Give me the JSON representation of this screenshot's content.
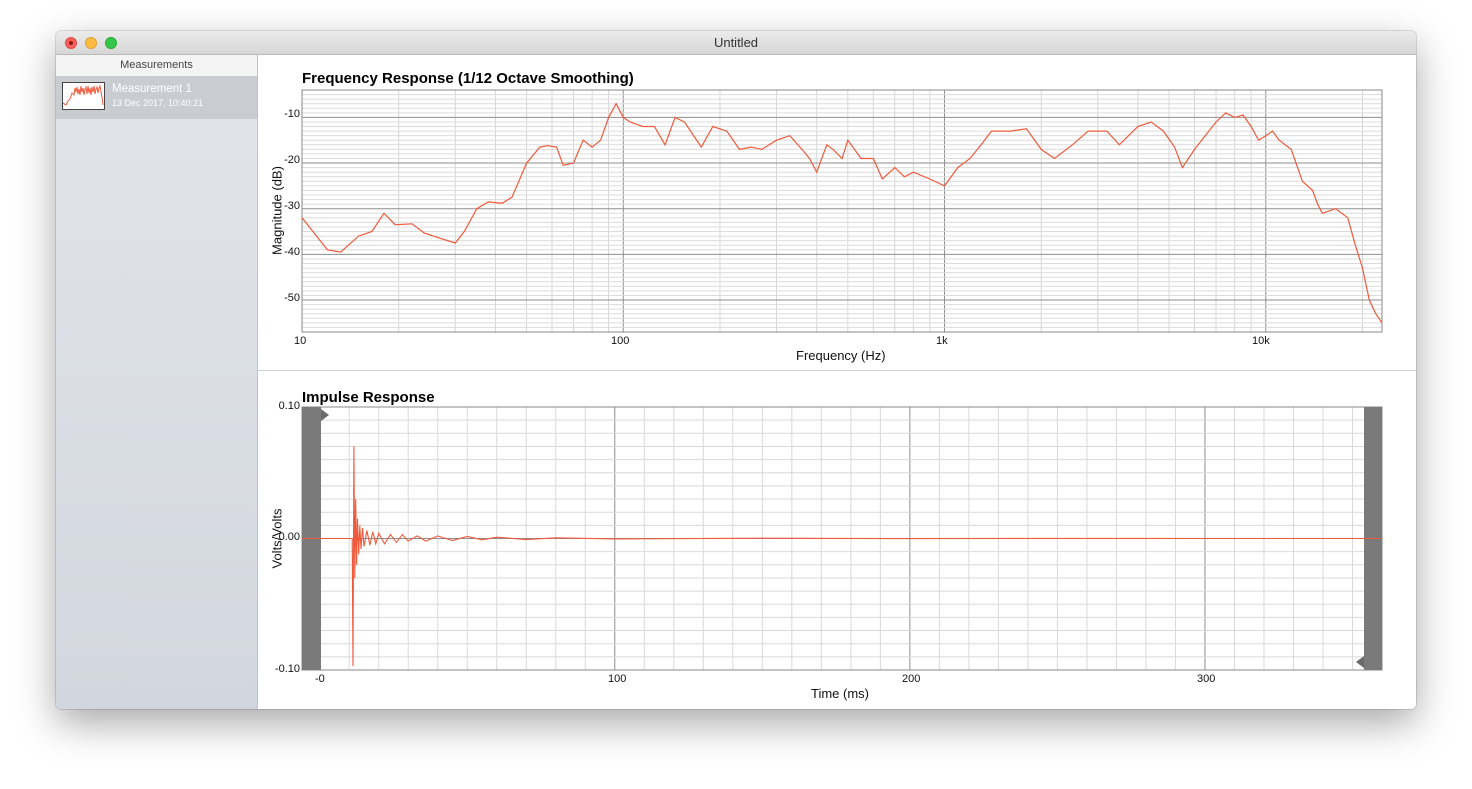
{
  "window": {
    "title": "Untitled"
  },
  "sidebar": {
    "header": "Measurements",
    "items": [
      {
        "name": "Measurement 1",
        "date": "13 Dec 2017, 10:40:21"
      }
    ]
  },
  "colors": {
    "trace": "#f05a3c",
    "sidebar_selected": "#c9ccd1",
    "handle": "#7a7a7a"
  },
  "frequency_chart": {
    "title": "Frequency Response (1/12 Octave Smoothing)",
    "xlabel": "Frequency (Hz)",
    "ylabel": "Magnitude (dB)",
    "x_ticks": [
      "10",
      "100",
      "1k",
      "10k"
    ],
    "y_ticks": [
      "-10",
      "-20",
      "-30",
      "-40",
      "-50"
    ]
  },
  "impulse_chart": {
    "title": "Impulse Response",
    "xlabel": "Time (ms)",
    "ylabel": "Volts/Volts",
    "x_ticks": [
      "-0",
      "100",
      "200",
      "300"
    ],
    "y_ticks": [
      "0.10",
      "0.00",
      "-0.10"
    ]
  },
  "chart_data": [
    {
      "type": "line",
      "title": "Frequency Response (1/12 Octave Smoothing)",
      "xlabel": "Frequency (Hz)",
      "ylabel": "Magnitude (dB)",
      "x_scale": "log",
      "xlim": [
        10,
        23000
      ],
      "ylim": [
        -57,
        -4
      ],
      "grid": true,
      "series": [
        {
          "x": [
            10,
            12,
            13.2,
            15,
            16.5,
            18,
            19.5,
            22,
            24,
            27,
            30,
            32,
            35,
            38,
            42,
            45,
            50,
            55,
            58,
            62,
            65,
            70,
            75,
            80,
            85,
            90,
            95,
            100,
            105,
            115,
            125,
            135,
            145,
            155,
            175,
            190,
            210,
            230,
            250,
            270,
            300,
            330,
            360,
            380,
            400,
            430,
            450,
            480,
            500,
            550,
            600,
            640,
            700,
            750,
            800,
            900,
            1000,
            1100,
            1200,
            1300,
            1400,
            1600,
            1800,
            2000,
            2200,
            2500,
            2800,
            3200,
            3500,
            4000,
            4400,
            4800,
            5200,
            5500,
            6000,
            7000,
            7500,
            8000,
            8500,
            9000,
            9500,
            10000,
            10500,
            11000,
            12000,
            13000,
            14000,
            14500,
            15000,
            16500,
            18000,
            19000,
            20000,
            21000,
            22000,
            23000
          ],
          "y": [
            -32,
            -39,
            -39.5,
            -36,
            -35,
            -31,
            -33.5,
            -33.3,
            -35.3,
            -36.5,
            -37.5,
            -35,
            -30,
            -28.5,
            -28.8,
            -27.5,
            -20,
            -16.5,
            -16.2,
            -16.5,
            -20.5,
            -20,
            -15,
            -16.5,
            -15,
            -10,
            -7,
            -10,
            -11,
            -12,
            -12,
            -16,
            -10,
            -11,
            -16.5,
            -12,
            -13,
            -17,
            -16.5,
            -17,
            -15,
            -14,
            -17,
            -19,
            -22,
            -16,
            -17,
            -19,
            -15,
            -19,
            -19,
            -23.5,
            -21,
            -23,
            -22,
            -23.5,
            -25,
            -21,
            -19,
            -16,
            -13,
            -13,
            -12.5,
            -17,
            -19,
            -16,
            -13,
            -13,
            -16,
            -12,
            -11,
            -13,
            -16.5,
            -21,
            -17,
            -11,
            -9,
            -10,
            -9.5,
            -12,
            -15,
            -14,
            -13,
            -15,
            -17,
            -24,
            -26,
            -29,
            -31,
            -30,
            -32,
            -38,
            -43,
            -50,
            -53,
            -55
          ]
        }
      ]
    },
    {
      "type": "line",
      "title": "Impulse Response",
      "xlabel": "Time (ms)",
      "ylabel": "Volts/Volts",
      "xlim": [
        -6,
        360
      ],
      "ylim": [
        -0.1,
        0.1
      ],
      "grid": true,
      "series": [
        {
          "x": [
            -6,
            8,
            11,
            11.3,
            11.6,
            11.9,
            12.2,
            12.5,
            12.8,
            13.2,
            13.6,
            14,
            14.5,
            15,
            16,
            17,
            18,
            19,
            20,
            22,
            24,
            26,
            28,
            30,
            33,
            36,
            40,
            45,
            50,
            55,
            60,
            70,
            80,
            100,
            150,
            200,
            250,
            300,
            360
          ],
          "y": [
            0,
            0,
            0,
            -0.097,
            0.07,
            -0.03,
            0.03,
            -0.02,
            0.015,
            -0.012,
            0.01,
            -0.008,
            0.008,
            -0.006,
            0.006,
            -0.005,
            0.005,
            -0.004,
            0.004,
            -0.004,
            0.003,
            -0.003,
            0.003,
            -0.002,
            0.002,
            -0.002,
            0.002,
            -0.0015,
            0.0015,
            -0.001,
            0.001,
            -0.0008,
            0.0005,
            -0.0003,
            0.0002,
            -0.0001,
            0.0001,
            0,
            0
          ]
        }
      ]
    }
  ]
}
